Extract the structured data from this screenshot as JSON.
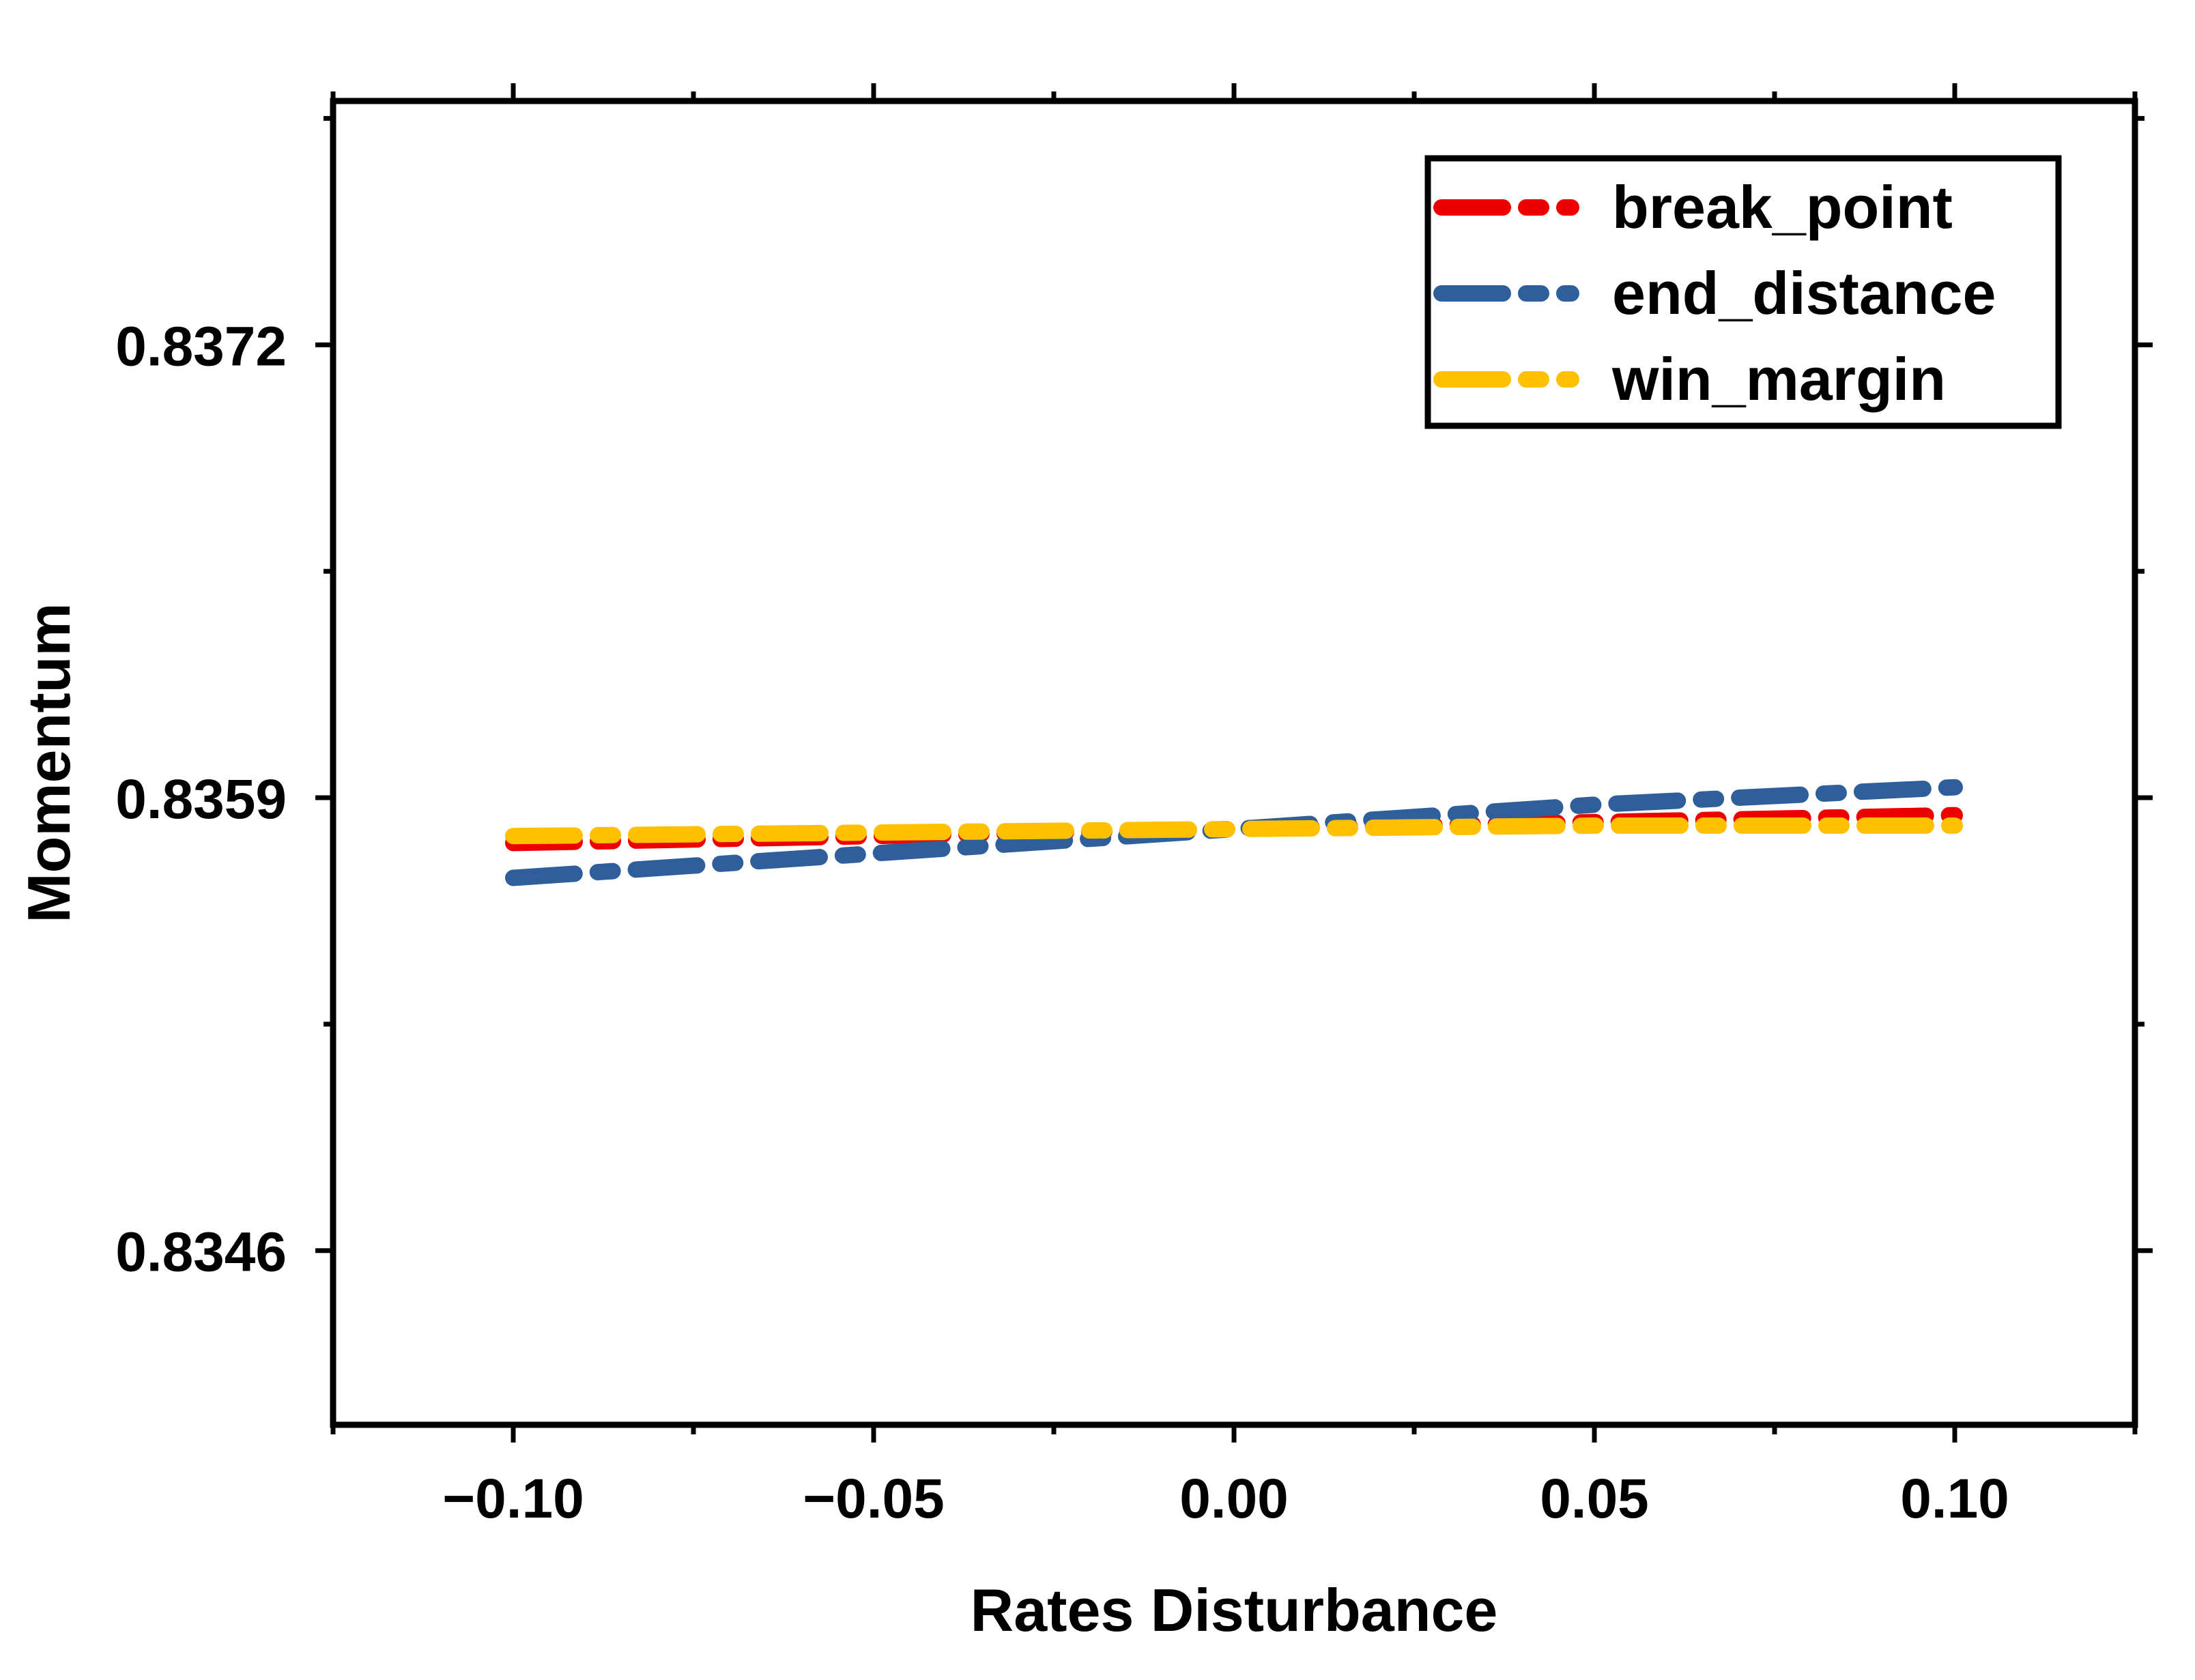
{
  "chart_data": {
    "type": "line",
    "xlabel": "Rates Disturbance",
    "ylabel": "Momentum",
    "xlim": [
      -0.125,
      0.125
    ],
    "ylim": [
      0.8341,
      0.8379
    ],
    "xticks": [
      -0.1,
      -0.05,
      0.0,
      0.05,
      0.1
    ],
    "xtick_labels": [
      "−0.10",
      "−0.05",
      "0.00",
      "0.05",
      "0.10"
    ],
    "yticks": [
      0.8346,
      0.8359,
      0.8372
    ],
    "ytick_labels": [
      "0.8346",
      "0.8359",
      "0.8372"
    ],
    "grid": false,
    "legend_position": "top-right",
    "x": [
      -0.1,
      -0.05,
      0.0,
      0.05,
      0.1
    ],
    "series": [
      {
        "name": "break_point",
        "color": "#ee0000",
        "style": "dash-dot",
        "values": [
          0.83577,
          0.83579,
          0.83581,
          0.83583,
          0.83585
        ]
      },
      {
        "name": "end_distance",
        "color": "#2f5f9a",
        "style": "dash-dot",
        "values": [
          0.83567,
          0.83574,
          0.83581,
          0.83588,
          0.83593
        ]
      },
      {
        "name": "win_margin",
        "color": "#ffc000",
        "style": "dash-dot",
        "values": [
          0.83579,
          0.8358,
          0.83581,
          0.83582,
          0.83582
        ]
      }
    ]
  }
}
